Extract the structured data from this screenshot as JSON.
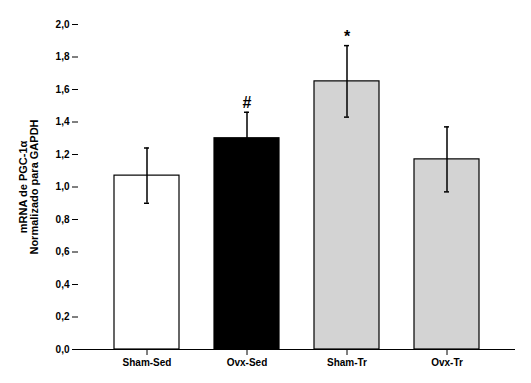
{
  "chart_data": {
    "type": "bar",
    "categories": [
      "Sham-Sed",
      "Ovx-Sed",
      "Sham-Tr",
      "Ovx-Tr"
    ],
    "values": [
      1.07,
      1.3,
      1.65,
      1.17
    ],
    "errors": [
      0.17,
      0.16,
      0.22,
      0.2
    ],
    "colors": [
      "white",
      "black",
      "lightgray",
      "lightgray"
    ],
    "annotations": [
      {
        "text": "#",
        "category": "Ovx-Sed"
      },
      {
        "text": "*",
        "category": "Sham-Tr"
      }
    ],
    "ylabel": "mRNA de PGC-1α\nNormalizado para GAPDH",
    "ylim": [
      0.0,
      2.0
    ],
    "yticks": [
      {
        "value": 0.0,
        "label": "0,0"
      },
      {
        "value": 0.2,
        "label": "0,2"
      },
      {
        "value": 0.4,
        "label": "0,4"
      },
      {
        "value": 0.6,
        "label": "0,6"
      },
      {
        "value": 0.8,
        "label": "0,8"
      },
      {
        "value": 1.0,
        "label": "1,0"
      },
      {
        "value": 1.2,
        "label": "1,2"
      },
      {
        "value": 1.4,
        "label": "1,4"
      },
      {
        "value": 1.6,
        "label": "1,6"
      },
      {
        "value": 1.8,
        "label": "1,8"
      },
      {
        "value": 2.0,
        "label": "2,0"
      }
    ],
    "grid": false
  }
}
